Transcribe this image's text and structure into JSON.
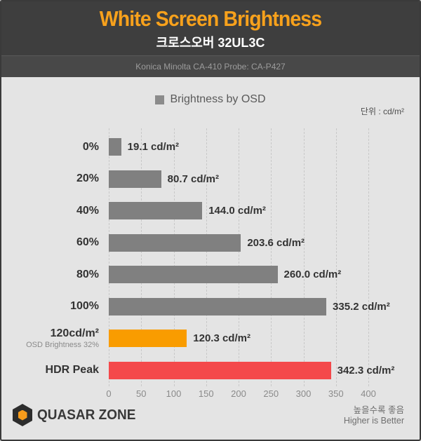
{
  "header": {
    "title": "White Screen Brightness",
    "subtitle": "크로스오버 32UL3C",
    "equipment": "Konica Minolta CA-410 Probe: CA-P427"
  },
  "legend": {
    "label": "Brightness by OSD"
  },
  "unit_label": "단위 : cd/m²",
  "chart_data": {
    "type": "bar",
    "orientation": "horizontal",
    "title": "White Screen Brightness",
    "subtitle": "크로스오버 32UL3C",
    "legend": [
      "Brightness by OSD"
    ],
    "legend_position": "top-center",
    "unit": "cd/m²",
    "categories": [
      "0%",
      "20%",
      "40%",
      "60%",
      "80%",
      "100%",
      "120cd/m²",
      "HDR Peak"
    ],
    "category_sublabels": [
      "",
      "",
      "",
      "",
      "",
      "",
      "OSD Brightness 32%",
      ""
    ],
    "values": [
      19.1,
      80.7,
      144.0,
      203.6,
      260.0,
      335.2,
      120.3,
      342.3
    ],
    "value_labels": [
      "19.1 cd/m²",
      "80.7 cd/m²",
      "144.0 cd/m²",
      "203.6 cd/m²",
      "260.0 cd/m²",
      "335.2 cd/m²",
      "120.3 cd/m²",
      "342.3 cd/m²"
    ],
    "bar_colors": [
      "#808080",
      "#808080",
      "#808080",
      "#808080",
      "#808080",
      "#808080",
      "#f99c00",
      "#f4494b"
    ],
    "xlim": [
      0,
      400
    ],
    "xticks": [
      0,
      50,
      100,
      150,
      200,
      250,
      300,
      350,
      400
    ],
    "grid": "vertical-dashed",
    "higher_is_better": true
  },
  "footer": {
    "brand": "QUASAR ZONE",
    "note_ko": "높을수록 좋음",
    "note_en": "Higher is Better"
  },
  "colors": {
    "header_bg": "#3e3e3e",
    "subheader_bg": "#484848",
    "page_bg": "#e4e4e4",
    "accent_orange": "#f7a11c",
    "bar_gray": "#808080",
    "bar_orange": "#f99c00",
    "bar_red": "#f4494b"
  }
}
